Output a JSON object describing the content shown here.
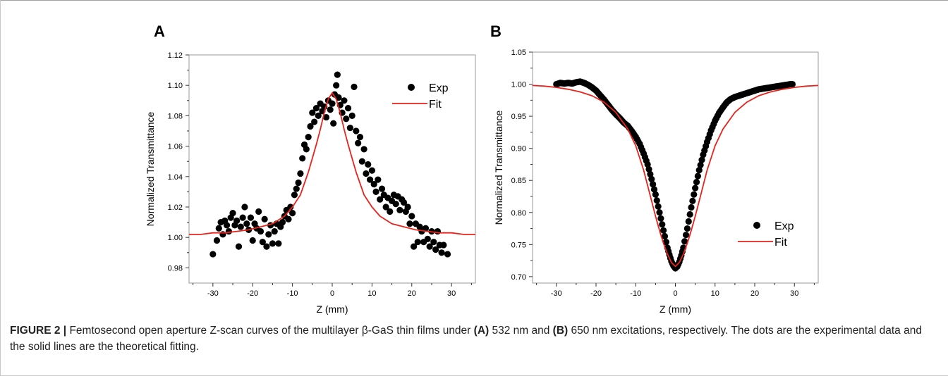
{
  "caption": {
    "label": "FIGURE 2 |",
    "parts": [
      {
        "t": " Femtosecond open aperture Z-scan curves of the multilayer β-GaS thin films under ",
        "b": false
      },
      {
        "t": "(A)",
        "b": true
      },
      {
        "t": " 532 nm and ",
        "b": false
      },
      {
        "t": "(B)",
        "b": true
      },
      {
        "t": " 650 nm excitations, respectively. The dots are the experimental data and the solid lines are the theoretical fitting.",
        "b": false
      }
    ]
  },
  "colors": {
    "fit": "#e8231c",
    "exp": "#000000",
    "frame": "#9a9a9a"
  },
  "chart_data": [
    {
      "panel": "A",
      "type": "scatter",
      "xlabel": "Z (mm)",
      "ylabel": "Normalized Transmittance",
      "xlim": [
        -36,
        36
      ],
      "ylim": [
        0.97,
        1.12
      ],
      "xticks": [
        -30,
        -20,
        -10,
        0,
        10,
        20,
        30
      ],
      "yticks": [
        0.98,
        1.0,
        1.02,
        1.04,
        1.06,
        1.08,
        1.1,
        1.12
      ],
      "ytick_labels": [
        "0.98",
        "1.00",
        "1.02",
        "1.04",
        "1.06",
        "1.08",
        "1.10",
        "1.12"
      ],
      "legend": {
        "position": "top-right",
        "entries": [
          "Exp",
          "Fit"
        ]
      },
      "series": [
        {
          "name": "Exp",
          "kind": "points",
          "points": [
            [
              -30,
              0.989
            ],
            [
              -29,
              0.998
            ],
            [
              -28.5,
              1.006
            ],
            [
              -28,
              1.01
            ],
            [
              -27.5,
              1.002
            ],
            [
              -27,
              1.011
            ],
            [
              -26.5,
              1.008
            ],
            [
              -26,
              1.004
            ],
            [
              -25.5,
              1.013
            ],
            [
              -25,
              1.016
            ],
            [
              -24.5,
              1.008
            ],
            [
              -24,
              1.011
            ],
            [
              -23.5,
              0.994
            ],
            [
              -23,
              1.007
            ],
            [
              -22.5,
              1.013
            ],
            [
              -22,
              1.02
            ],
            [
              -21.5,
              1.009
            ],
            [
              -21,
              1.005
            ],
            [
              -20.5,
              1.013
            ],
            [
              -20,
              0.998
            ],
            [
              -19.5,
              1.009
            ],
            [
              -19,
              1.006
            ],
            [
              -18.5,
              1.017
            ],
            [
              -18,
              1.004
            ],
            [
              -17.5,
              0.997
            ],
            [
              -17,
              1.012
            ],
            [
              -16.5,
              0.994
            ],
            [
              -16,
              1.002
            ],
            [
              -15.5,
              1.008
            ],
            [
              -15,
              0.996
            ],
            [
              -14.5,
              1.004
            ],
            [
              -14,
              1.009
            ],
            [
              -13.5,
              0.996
            ],
            [
              -13,
              1.007
            ],
            [
              -12.5,
              1.01
            ],
            [
              -12,
              1.014
            ],
            [
              -11.5,
              1.018
            ],
            [
              -11,
              1.012
            ],
            [
              -10.5,
              1.02
            ],
            [
              -10,
              1.016
            ],
            [
              -9.5,
              1.028
            ],
            [
              -9,
              1.032
            ],
            [
              -8.5,
              1.036
            ],
            [
              -8,
              1.042
            ],
            [
              -7.5,
              1.052
            ],
            [
              -7,
              1.061
            ],
            [
              -6.5,
              1.058
            ],
            [
              -6,
              1.066
            ],
            [
              -5.5,
              1.073
            ],
            [
              -5,
              1.082
            ],
            [
              -4.5,
              1.076
            ],
            [
              -4,
              1.085
            ],
            [
              -3.5,
              1.08
            ],
            [
              -3,
              1.088
            ],
            [
              -2.5,
              1.083
            ],
            [
              -2,
              1.086
            ],
            [
              -1.5,
              1.079
            ],
            [
              -1,
              1.09
            ],
            [
              -0.5,
              1.084
            ],
            [
              0,
              1.088
            ],
            [
              0.3,
              1.075
            ],
            [
              0.6,
              1.094
            ],
            [
              1,
              1.1
            ],
            [
              1.3,
              1.107
            ],
            [
              1.6,
              1.092
            ],
            [
              2,
              1.087
            ],
            [
              2.5,
              1.082
            ],
            [
              3,
              1.09
            ],
            [
              3.5,
              1.078
            ],
            [
              4,
              1.085
            ],
            [
              4.5,
              1.072
            ],
            [
              5,
              1.08
            ],
            [
              5.5,
              1.099
            ],
            [
              6,
              1.07
            ],
            [
              6.5,
              1.062
            ],
            [
              7,
              1.066
            ],
            [
              7.5,
              1.05
            ],
            [
              8,
              1.058
            ],
            [
              8.5,
              1.042
            ],
            [
              9,
              1.048
            ],
            [
              9.5,
              1.038
            ],
            [
              10,
              1.044
            ],
            [
              10.5,
              1.035
            ],
            [
              11,
              1.03
            ],
            [
              11.5,
              1.038
            ],
            [
              12,
              1.025
            ],
            [
              12.5,
              1.032
            ],
            [
              13,
              1.028
            ],
            [
              13.5,
              1.02
            ],
            [
              14,
              1.026
            ],
            [
              14.5,
              1.017
            ],
            [
              15,
              1.024
            ],
            [
              15.5,
              1.028
            ],
            [
              16,
              1.022
            ],
            [
              16.5,
              1.027
            ],
            [
              17,
              1.018
            ],
            [
              17.5,
              1.025
            ],
            [
              18,
              1.023
            ],
            [
              18.5,
              1.017
            ],
            [
              19,
              1.02
            ],
            [
              19.5,
              1.009
            ],
            [
              20,
              1.014
            ],
            [
              20.5,
              0.994
            ],
            [
              21,
              1.009
            ],
            [
              21.5,
              0.997
            ],
            [
              22,
              1.007
            ],
            [
              22.5,
              1.004
            ],
            [
              23,
              0.997
            ],
            [
              23.5,
              1.006
            ],
            [
              24,
              0.999
            ],
            [
              24.5,
              0.994
            ],
            [
              25,
              1.004
            ],
            [
              25.5,
              0.997
            ],
            [
              26,
              0.992
            ],
            [
              26.5,
              1.004
            ],
            [
              27,
              0.995
            ],
            [
              27.5,
              0.99
            ],
            [
              28,
              0.995
            ],
            [
              29,
              0.989
            ]
          ]
        },
        {
          "name": "Fit",
          "kind": "line",
          "x": [
            -36,
            -33,
            -30,
            -27,
            -24,
            -21,
            -18,
            -15,
            -12,
            -10,
            -8,
            -6,
            -5,
            -4,
            -3,
            -2,
            -1,
            0,
            1,
            2,
            3,
            4,
            5,
            6,
            8,
            10,
            12,
            15,
            18,
            21,
            24,
            27,
            30,
            33,
            36
          ],
          "y": [
            1.002,
            1.002,
            1.003,
            1.003,
            1.004,
            1.005,
            1.007,
            1.009,
            1.014,
            1.02,
            1.028,
            1.043,
            1.052,
            1.061,
            1.071,
            1.082,
            1.091,
            1.095,
            1.091,
            1.082,
            1.071,
            1.061,
            1.052,
            1.043,
            1.028,
            1.02,
            1.014,
            1.009,
            1.007,
            1.005,
            1.004,
            1.003,
            1.003,
            1.002,
            1.002
          ]
        }
      ]
    },
    {
      "panel": "B",
      "type": "scatter",
      "xlabel": "Z (mm)",
      "ylabel": "Normalized Transmittance",
      "xlim": [
        -36,
        36
      ],
      "ylim": [
        0.69,
        1.05
      ],
      "xticks": [
        -30,
        -20,
        -10,
        0,
        10,
        20,
        30
      ],
      "yticks": [
        0.7,
        0.75,
        0.8,
        0.85,
        0.9,
        0.95,
        1.0,
        1.05
      ],
      "ytick_labels": [
        "0.70",
        "0.75",
        "0.80",
        "0.85",
        "0.90",
        "0.95",
        "1.00",
        "1.05"
      ],
      "legend": {
        "position": "bottom-right",
        "entries": [
          "Exp",
          "Fit"
        ]
      },
      "series": [
        {
          "name": "Exp",
          "kind": "dense_curve",
          "x": [
            -30,
            -29,
            -28,
            -27,
            -26,
            -25,
            -24,
            -23,
            -22,
            -21,
            -20,
            -19,
            -18,
            -17,
            -16,
            -15,
            -14,
            -13,
            -12,
            -11,
            -10,
            -9,
            -8,
            -7,
            -6,
            -5,
            -4,
            -3,
            -2,
            -1.5,
            -1,
            -0.5,
            0,
            0.5,
            1,
            1.5,
            2,
            3,
            4,
            5,
            6,
            7,
            8,
            9,
            10,
            11,
            12,
            13,
            14,
            15,
            16,
            17,
            18,
            19,
            20,
            21,
            22,
            23,
            24,
            25,
            26,
            27,
            28,
            29,
            29.5
          ],
          "y": [
            1.0,
            1.002,
            1.001,
            1.002,
            1.001,
            1.003,
            1.004,
            1.002,
            0.999,
            0.995,
            0.99,
            0.983,
            0.976,
            0.968,
            0.96,
            0.953,
            0.947,
            0.94,
            0.935,
            0.927,
            0.918,
            0.907,
            0.892,
            0.875,
            0.852,
            0.828,
            0.8,
            0.772,
            0.745,
            0.734,
            0.724,
            0.717,
            0.713,
            0.716,
            0.723,
            0.733,
            0.745,
            0.775,
            0.808,
            0.838,
            0.866,
            0.89,
            0.91,
            0.928,
            0.943,
            0.955,
            0.964,
            0.972,
            0.977,
            0.98,
            0.982,
            0.984,
            0.986,
            0.988,
            0.99,
            0.992,
            0.993,
            0.994,
            0.995,
            0.996,
            0.997,
            0.998,
            0.999,
            1.0,
            1.0
          ]
        },
        {
          "name": "Fit",
          "kind": "line",
          "x": [
            -36,
            -33,
            -30,
            -27,
            -24,
            -21,
            -18,
            -15,
            -12,
            -10,
            -8,
            -6,
            -5,
            -4,
            -3,
            -2,
            -1,
            0,
            1,
            2,
            3,
            4,
            5,
            6,
            8,
            10,
            12,
            15,
            18,
            21,
            24,
            27,
            30,
            33,
            36
          ],
          "y": [
            0.998,
            0.997,
            0.995,
            0.992,
            0.988,
            0.982,
            0.972,
            0.956,
            0.93,
            0.904,
            0.866,
            0.818,
            0.794,
            0.772,
            0.752,
            0.735,
            0.722,
            0.716,
            0.722,
            0.735,
            0.752,
            0.772,
            0.794,
            0.818,
            0.866,
            0.904,
            0.93,
            0.956,
            0.972,
            0.982,
            0.988,
            0.992,
            0.995,
            0.997,
            0.998
          ]
        }
      ]
    }
  ]
}
